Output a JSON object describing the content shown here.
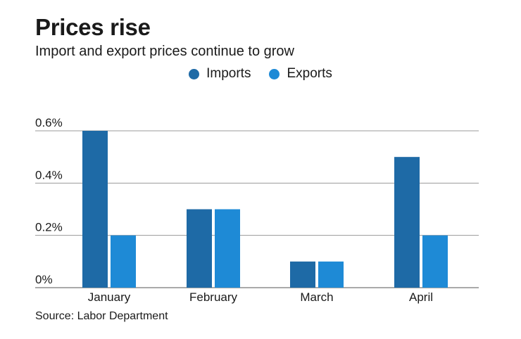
{
  "chart_data": {
    "type": "bar",
    "title": "Prices rise",
    "subtitle": "Import and export prices continue to grow",
    "categories": [
      "January",
      "February",
      "March",
      "April"
    ],
    "series": [
      {
        "name": "Imports",
        "color": "#1e6aa6",
        "values": [
          0.6,
          0.3,
          0.1,
          0.5
        ]
      },
      {
        "name": "Exports",
        "color": "#1e8ad6",
        "values": [
          0.2,
          0.3,
          0.1,
          0.2
        ]
      }
    ],
    "ylim": [
      0,
      0.6
    ],
    "yticks": [
      0,
      0.2,
      0.4,
      0.6
    ],
    "ytick_labels": [
      "0%",
      "0.2%",
      "0.4%",
      "0.6%"
    ],
    "grid": true,
    "legend_position": "top-center",
    "source": "Source: Labor Department"
  }
}
